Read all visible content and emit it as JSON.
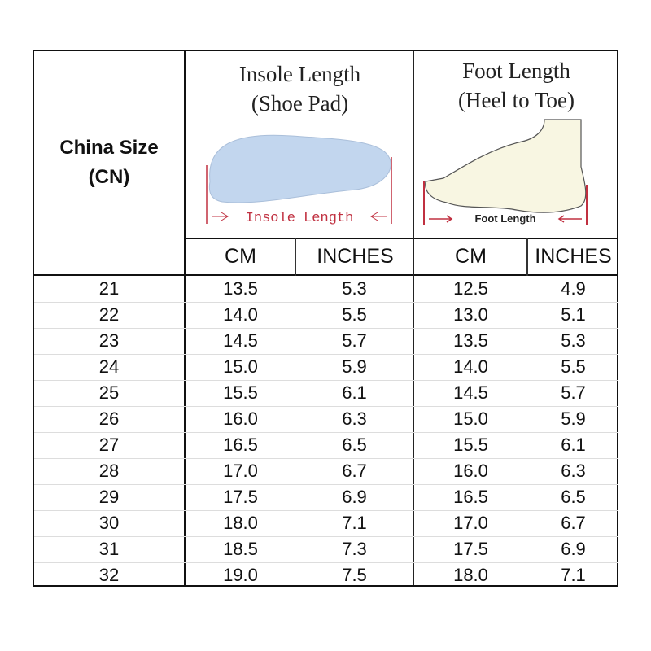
{
  "header": {
    "size_col": "China Size\n(CN)",
    "size_col_line1": "China Size",
    "size_col_line2": "(CN)",
    "insole": {
      "line1": "Insole Length",
      "line2": "(Shoe Pad)",
      "diagram_label": "Insole Length"
    },
    "foot": {
      "line1": "Foot Length",
      "line2": "(Heel to Toe)",
      "diagram_label": "Foot Length"
    },
    "units": [
      "CM",
      "INCHES",
      "CM",
      "INCHES"
    ]
  },
  "colors": {
    "insole": "#c2d6ee",
    "foot": "#f8f6e2",
    "arrow": "#c03040"
  },
  "rows": [
    [
      "21",
      "13.5",
      "5.3",
      "12.5",
      "4.9"
    ],
    [
      "22",
      "14.0",
      "5.5",
      "13.0",
      "5.1"
    ],
    [
      "23",
      "14.5",
      "5.7",
      "13.5",
      "5.3"
    ],
    [
      "24",
      "15.0",
      "5.9",
      "14.0",
      "5.5"
    ],
    [
      "25",
      "15.5",
      "6.1",
      "14.5",
      "5.7"
    ],
    [
      "26",
      "16.0",
      "6.3",
      "15.0",
      "5.9"
    ],
    [
      "27",
      "16.5",
      "6.5",
      "15.5",
      "6.1"
    ],
    [
      "28",
      "17.0",
      "6.7",
      "16.0",
      "6.3"
    ],
    [
      "29",
      "17.5",
      "6.9",
      "16.5",
      "6.5"
    ],
    [
      "30",
      "18.0",
      "7.1",
      "17.0",
      "6.7"
    ],
    [
      "31",
      "18.5",
      "7.3",
      "17.5",
      "6.9"
    ],
    [
      "32",
      "19.0",
      "7.5",
      "18.0",
      "7.1"
    ]
  ]
}
